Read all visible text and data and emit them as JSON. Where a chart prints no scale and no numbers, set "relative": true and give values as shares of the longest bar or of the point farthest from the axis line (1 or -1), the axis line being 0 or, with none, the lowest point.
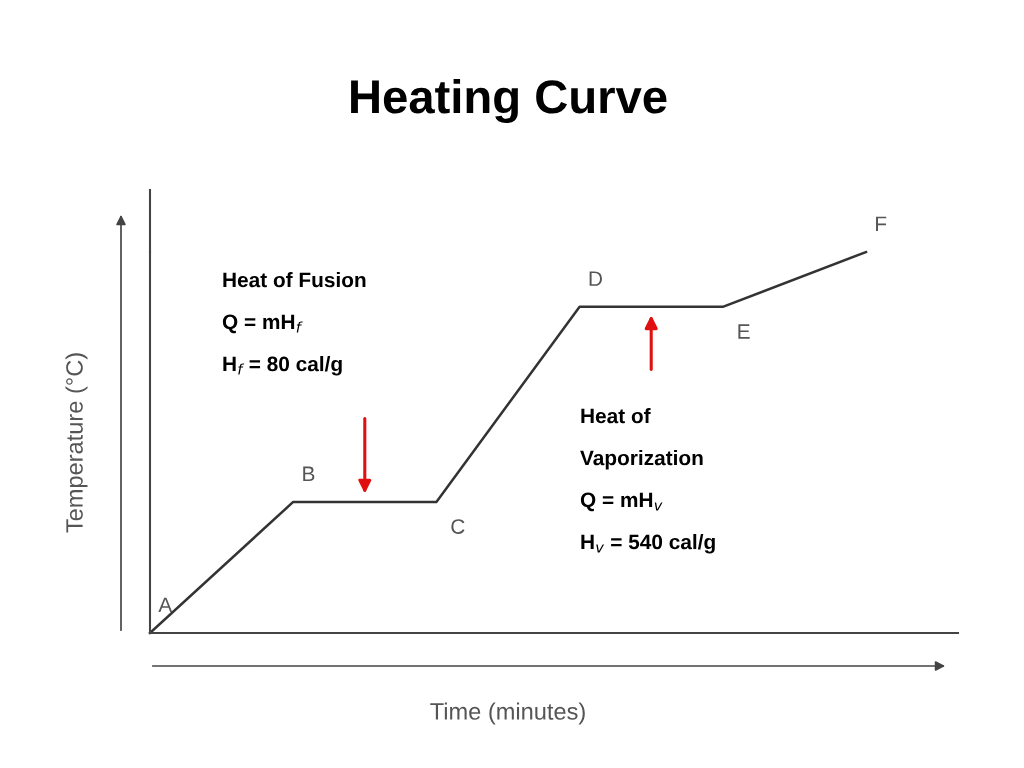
{
  "chart_data": {
    "type": "line",
    "title": "Heating Curve",
    "xlabel": "Time (minutes)",
    "ylabel": "Temperature (°C)",
    "relative": true,
    "categories": [
      "A",
      "B",
      "C",
      "D",
      "E",
      "F"
    ],
    "series": [
      {
        "color": "#333333",
        "values": [
          0,
          0.344,
          0.344,
          0.856,
          0.856,
          1
        ]
      }
    ],
    "annotations": [
      "Heat of Fusion",
      "Q = mH$_{f}$",
      "H$_{f}$ = 80 cal/g",
      "Heat of",
      "Vaporization",
      "Q = mH$_{v}$",
      "H$_{v}$ = 540 cal/g"
    ],
    "grid": false,
    "marker": "none",
    "line_style": "solid"
  }
}
